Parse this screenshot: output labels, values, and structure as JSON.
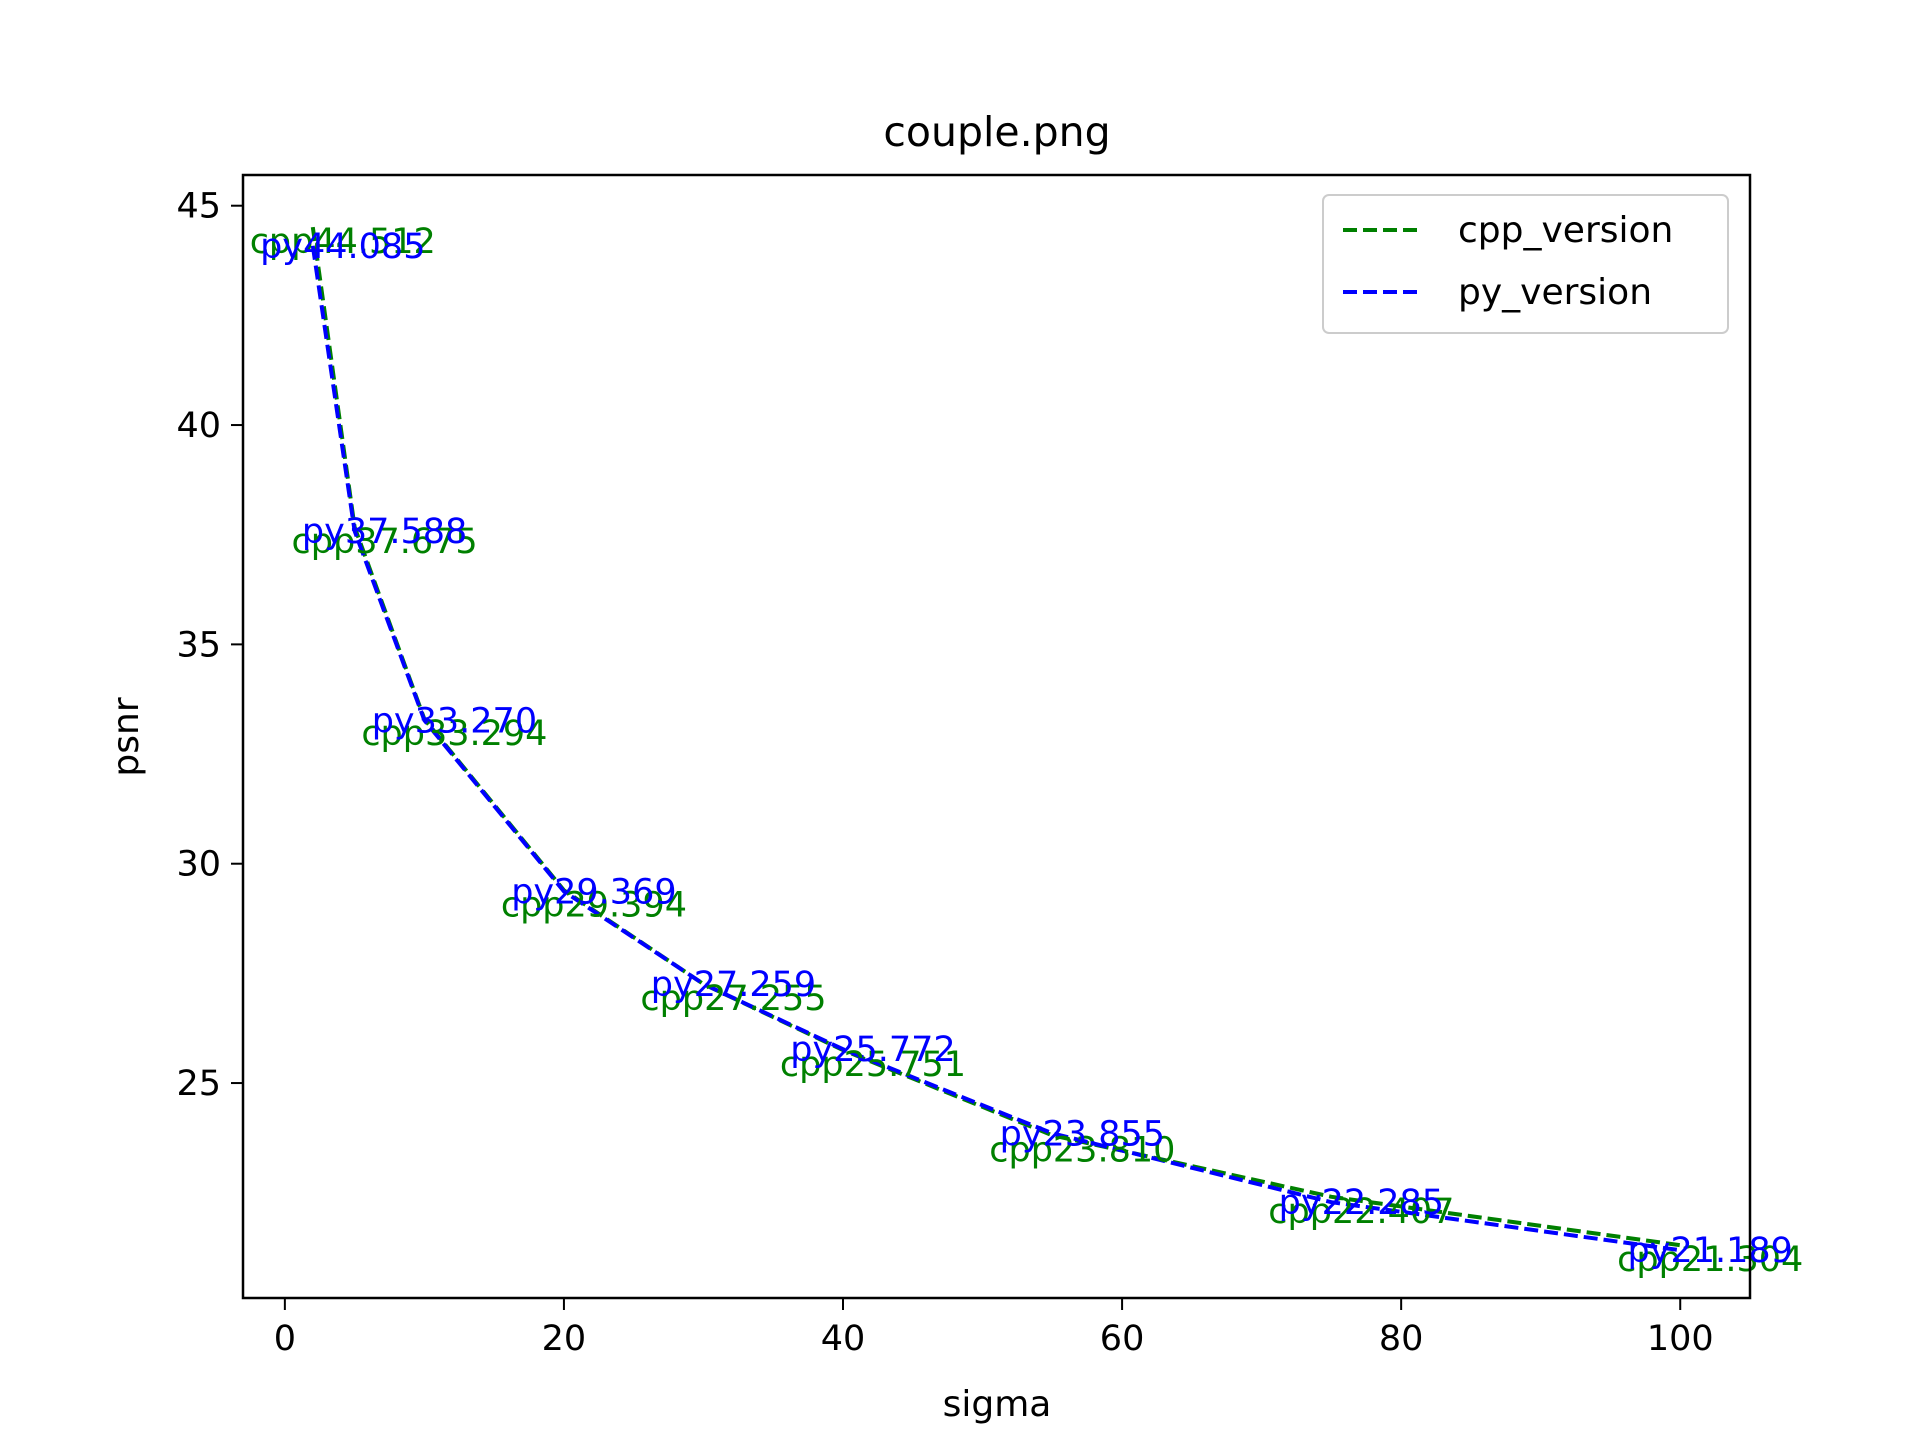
{
  "chart_data": {
    "type": "line",
    "title": "couple.png",
    "xlabel": "sigma",
    "ylabel": "psnr",
    "xlim": [
      -3,
      105
    ],
    "ylim": [
      20.1,
      45.7
    ],
    "x_ticks": [
      0,
      20,
      40,
      60,
      80,
      100
    ],
    "y_ticks": [
      25,
      30,
      35,
      40,
      45
    ],
    "grid": false,
    "legend_position": "top-right",
    "x": [
      2,
      5,
      10,
      20,
      30,
      40,
      55,
      75,
      100
    ],
    "series": [
      {
        "name": "cpp_version",
        "color": "#008000",
        "style": "dashed",
        "values": [
          44.512,
          37.675,
          33.294,
          29.394,
          27.255,
          25.751,
          23.81,
          22.407,
          21.304
        ],
        "labels": [
          "cpp44.512",
          "cpp37.675",
          "cpp33.294",
          "cpp29.394",
          "cpp27.255",
          "cpp25.751",
          "cpp23.810",
          "cpp22.407",
          "cpp21.304"
        ]
      },
      {
        "name": "py_version",
        "color": "#0000ff",
        "style": "dashed",
        "values": [
          44.085,
          37.588,
          33.27,
          29.369,
          27.259,
          25.772,
          23.855,
          22.285,
          21.189
        ],
        "labels": [
          "py44.085",
          "py37.588",
          "py33.270",
          "py29.369",
          "py27.259",
          "py25.772",
          "py23.855",
          "py22.285",
          "py21.189"
        ]
      }
    ]
  }
}
